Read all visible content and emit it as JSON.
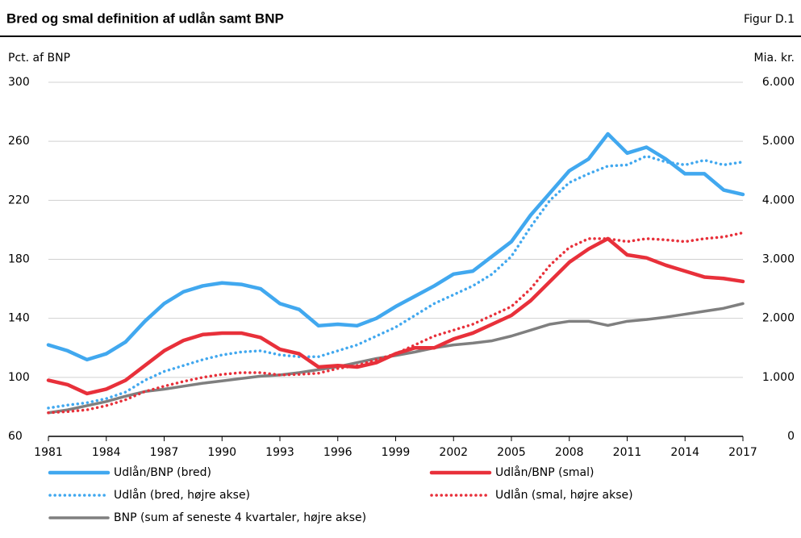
{
  "chart_data": {
    "type": "line",
    "title": "Bred og smal definition af udlån samt BNP",
    "figure_label": "Figur D.1",
    "ylabel": "Pct. af BNP",
    "y2label": "Mia. kr.",
    "x": [
      1981,
      1982,
      1983,
      1984,
      1985,
      1986,
      1987,
      1988,
      1989,
      1990,
      1991,
      1992,
      1993,
      1994,
      1995,
      1996,
      1997,
      1998,
      1999,
      2000,
      2001,
      2002,
      2003,
      2004,
      2005,
      2006,
      2007,
      2008,
      2009,
      2010,
      2011,
      2012,
      2013,
      2014,
      2015,
      2016,
      2017
    ],
    "xlim": [
      1981,
      2017
    ],
    "xticks": [
      1981,
      1984,
      1987,
      1990,
      1993,
      1996,
      1999,
      2002,
      2005,
      2008,
      2011,
      2014,
      2017
    ],
    "ylim": [
      60,
      300
    ],
    "yticks": [
      60,
      100,
      140,
      180,
      220,
      260,
      300
    ],
    "y2lim": [
      0,
      6000
    ],
    "y2ticks": [
      0,
      {
        "value": 1000,
        "label": "1.000"
      },
      {
        "value": 2000,
        "label": "2.000"
      },
      {
        "value": 3000,
        "label": "3.000"
      },
      {
        "value": 4000,
        "label": "4.000"
      },
      {
        "value": 5000,
        "label": "5.000"
      },
      {
        "value": 6000,
        "label": "6.000"
      }
    ],
    "grid": true,
    "series": [
      {
        "name": "Udlån/BNP (bred)",
        "color": "#41a8ef",
        "style": "solid",
        "values": [
          122,
          118,
          112,
          116,
          124,
          138,
          150,
          158,
          162,
          164,
          163,
          160,
          150,
          146,
          135,
          136,
          135,
          140,
          148,
          155,
          162,
          170,
          172,
          182,
          192,
          210,
          225,
          240,
          248,
          265,
          252,
          256,
          248,
          238,
          238,
          227,
          224
        ]
      },
      {
        "name": "Udlån/BNP (smal)",
        "color": "#e8303a",
        "style": "solid",
        "values": [
          98,
          95,
          89,
          92,
          98,
          108,
          118,
          125,
          129,
          130,
          130,
          127,
          119,
          116,
          107,
          108,
          107,
          110,
          116,
          120,
          120,
          126,
          130,
          136,
          142,
          152,
          165,
          178,
          187,
          194,
          183,
          181,
          176,
          172,
          168,
          167,
          165
        ]
      },
      {
        "name": "Udlån (bred, højre akse)",
        "color": "#41a8ef",
        "style": "dotted",
        "axis": "y2",
        "values": [
          480,
          530,
          570,
          640,
          750,
          950,
          1100,
          1200,
          1300,
          1380,
          1430,
          1450,
          1380,
          1350,
          1350,
          1450,
          1550,
          1700,
          1850,
          2050,
          2250,
          2400,
          2550,
          2750,
          3050,
          3550,
          4000,
          4300,
          4450,
          4580,
          4600,
          4750,
          4650,
          4600,
          4680,
          4600,
          4650
        ]
      },
      {
        "name": "Udlån (smal, højre akse)",
        "color": "#e8303a",
        "style": "dotted",
        "axis": "y2",
        "values": [
          400,
          420,
          450,
          520,
          620,
          760,
          850,
          930,
          1000,
          1050,
          1080,
          1080,
          1040,
          1050,
          1070,
          1150,
          1200,
          1300,
          1400,
          1550,
          1700,
          1800,
          1900,
          2050,
          2200,
          2500,
          2900,
          3200,
          3350,
          3350,
          3300,
          3350,
          3330,
          3300,
          3350,
          3380,
          3450
        ]
      },
      {
        "name": "BNP (sum af seneste 4 kvartaler, højre akse)",
        "color": "#7f7f7f",
        "style": "solid",
        "axis": "y2",
        "values": [
          400,
          450,
          520,
          590,
          680,
          760,
          800,
          850,
          900,
          940,
          980,
          1020,
          1040,
          1080,
          1130,
          1180,
          1250,
          1320,
          1370,
          1430,
          1500,
          1550,
          1580,
          1620,
          1700,
          1800,
          1900,
          1950,
          1950,
          1880,
          1950,
          1980,
          2020,
          2070,
          2120,
          2170,
          2250
        ]
      }
    ]
  }
}
